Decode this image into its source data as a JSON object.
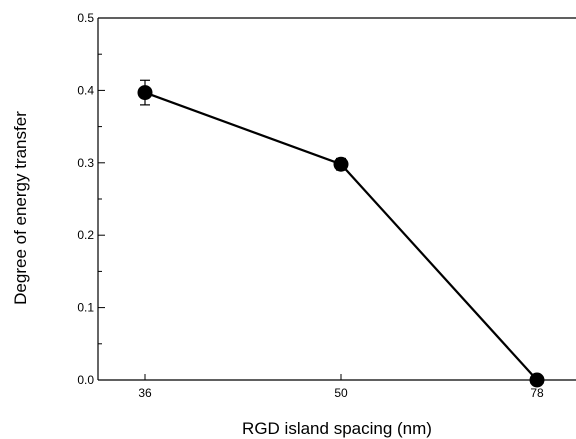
{
  "chart_data": {
    "type": "line",
    "title": "",
    "xlabel": "RGD island spacing (nm)",
    "ylabel": "Degree of energy transfer",
    "categories": [
      "36",
      "50",
      "78"
    ],
    "x_ticks": [
      "36",
      "50",
      "78"
    ],
    "y_ticks": [
      "0.0",
      "0.1",
      "0.2",
      "0.3",
      "0.4",
      "0.5"
    ],
    "ylim": [
      0,
      0.5
    ],
    "grid": false,
    "legend": "none",
    "series": [
      {
        "values": [
          0.397,
          0.298,
          0.0
        ],
        "errors": [
          0.017,
          0.008,
          0.0
        ],
        "marker": "filled-circle",
        "color": "#000000"
      }
    ]
  }
}
